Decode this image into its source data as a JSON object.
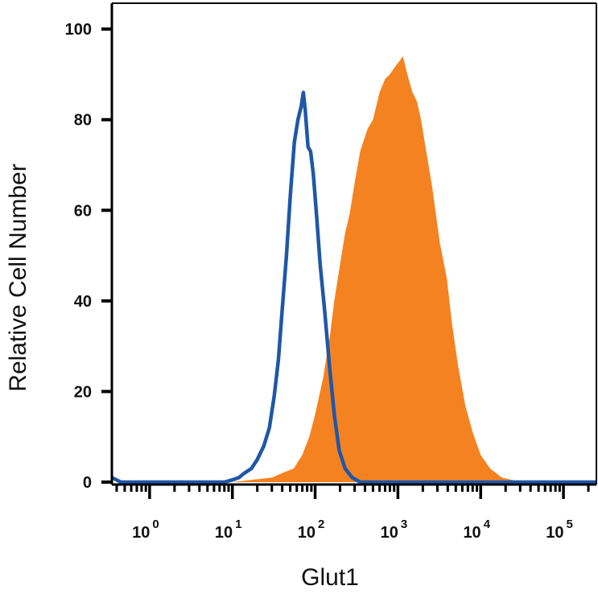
{
  "chart_data": {
    "type": "area",
    "title": "",
    "xlabel": "Glut1",
    "ylabel": "Relative Cell Number",
    "x_scale": "log",
    "xlim": [
      0.35,
      250000
    ],
    "ylim": [
      0,
      105
    ],
    "grid": false,
    "legend": "none",
    "y_ticks": [
      0,
      20,
      40,
      60,
      80,
      100
    ],
    "y_tick_labels": [
      "0",
      "20",
      "40",
      "60",
      "80",
      "100"
    ],
    "x_ticks": [
      1,
      10,
      100,
      1000,
      10000,
      100000
    ],
    "x_tick_labels": [
      {
        "base": "10",
        "exp": "0"
      },
      {
        "base": "10",
        "exp": "1"
      },
      {
        "base": "10",
        "exp": "2"
      },
      {
        "base": "10",
        "exp": "3"
      },
      {
        "base": "10",
        "exp": "4"
      },
      {
        "base": "10",
        "exp": "5"
      }
    ],
    "series": [
      {
        "style": "filled",
        "color": "#F58220",
        "points": [
          [
            0.35,
            0
          ],
          [
            10,
            0
          ],
          [
            30,
            1
          ],
          [
            40,
            2
          ],
          [
            55,
            3
          ],
          [
            70,
            6
          ],
          [
            85,
            10
          ],
          [
            100,
            15
          ],
          [
            125,
            23
          ],
          [
            150,
            32
          ],
          [
            170,
            40
          ],
          [
            200,
            48
          ],
          [
            230,
            55
          ],
          [
            260,
            59
          ],
          [
            300,
            66
          ],
          [
            350,
            73
          ],
          [
            430,
            78
          ],
          [
            500,
            80
          ],
          [
            600,
            86
          ],
          [
            700,
            89
          ],
          [
            800,
            90
          ],
          [
            950,
            92
          ],
          [
            1050,
            93
          ],
          [
            1150,
            94
          ],
          [
            1300,
            90
          ],
          [
            1500,
            86
          ],
          [
            1700,
            84
          ],
          [
            1900,
            80
          ],
          [
            2200,
            73
          ],
          [
            2600,
            65
          ],
          [
            3200,
            53
          ],
          [
            3900,
            45
          ],
          [
            4500,
            35
          ],
          [
            5300,
            26
          ],
          [
            6500,
            17
          ],
          [
            8000,
            11
          ],
          [
            10000,
            6
          ],
          [
            13000,
            3
          ],
          [
            18000,
            1
          ],
          [
            25000,
            0.4
          ],
          [
            40000,
            0
          ],
          [
            250000,
            0
          ]
        ]
      },
      {
        "style": "line",
        "color": "#1F57A8",
        "points": [
          [
            0.35,
            1
          ],
          [
            0.45,
            0
          ],
          [
            8,
            0
          ],
          [
            10,
            0.5
          ],
          [
            12,
            1
          ],
          [
            14,
            2
          ],
          [
            17,
            3
          ],
          [
            20,
            5
          ],
          [
            24,
            8
          ],
          [
            28,
            12
          ],
          [
            32,
            19
          ],
          [
            36,
            27
          ],
          [
            40,
            38
          ],
          [
            45,
            50
          ],
          [
            50,
            63
          ],
          [
            56,
            75
          ],
          [
            62,
            80
          ],
          [
            68,
            83
          ],
          [
            72,
            86
          ],
          [
            76,
            82
          ],
          [
            82,
            74
          ],
          [
            88,
            73
          ],
          [
            95,
            68
          ],
          [
            105,
            58
          ],
          [
            115,
            48
          ],
          [
            130,
            38
          ],
          [
            150,
            25
          ],
          [
            170,
            15
          ],
          [
            195,
            7
          ],
          [
            230,
            3
          ],
          [
            280,
            1
          ],
          [
            350,
            0
          ],
          [
            250000,
            0
          ]
        ]
      }
    ]
  }
}
